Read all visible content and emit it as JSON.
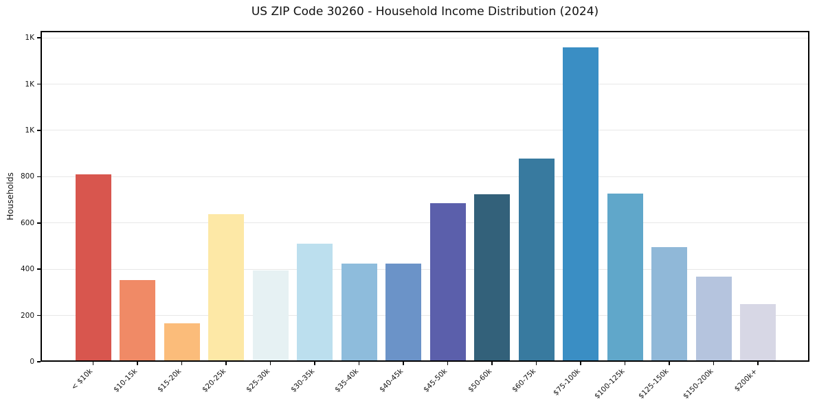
{
  "chart_data": {
    "type": "bar",
    "title": "US ZIP Code 30260 - Household Income Distribution (2024)",
    "xlabel": "",
    "ylabel": "Households",
    "categories": [
      "< $10k",
      "$10-15k",
      "$15-20k",
      "$20-25k",
      "$25-30k",
      "$30-35k",
      "$35-40k",
      "$40-45k",
      "$45-50k",
      "$50-60k",
      "$60-75k",
      "$75-100k",
      "$100-125k",
      "$125-150k",
      "$150-200k",
      "$200k+"
    ],
    "values": [
      810,
      353,
      167,
      638,
      396,
      511,
      424,
      424,
      685,
      723,
      877,
      1360,
      726,
      496,
      367,
      250
    ],
    "bar_colors": [
      "#d8564e",
      "#f08a66",
      "#fbbc7a",
      "#fde8a6",
      "#e6f1f3",
      "#bcdfee",
      "#8ebcdc",
      "#6b93c8",
      "#5b5fab",
      "#33617a",
      "#387a9f",
      "#3a8ec4",
      "#60a7ca",
      "#90b8d8",
      "#b5c4de",
      "#d7d7e5"
    ],
    "ylim": [
      0,
      1430
    ],
    "yticks": [
      {
        "value": 0,
        "label": "0"
      },
      {
        "value": 200,
        "label": "200"
      },
      {
        "value": 400,
        "label": "400"
      },
      {
        "value": 600,
        "label": "600"
      },
      {
        "value": 800,
        "label": "800"
      },
      {
        "value": 1000,
        "label": "1K"
      },
      {
        "value": 1200,
        "label": "1K"
      },
      {
        "value": 1400,
        "label": "1K"
      }
    ],
    "grid": "horizontal-y",
    "legend": "none",
    "grid_color": "#e7e7e7",
    "spine_color": "#000000",
    "text_color": "#111111",
    "background_color": "#ffffff"
  }
}
